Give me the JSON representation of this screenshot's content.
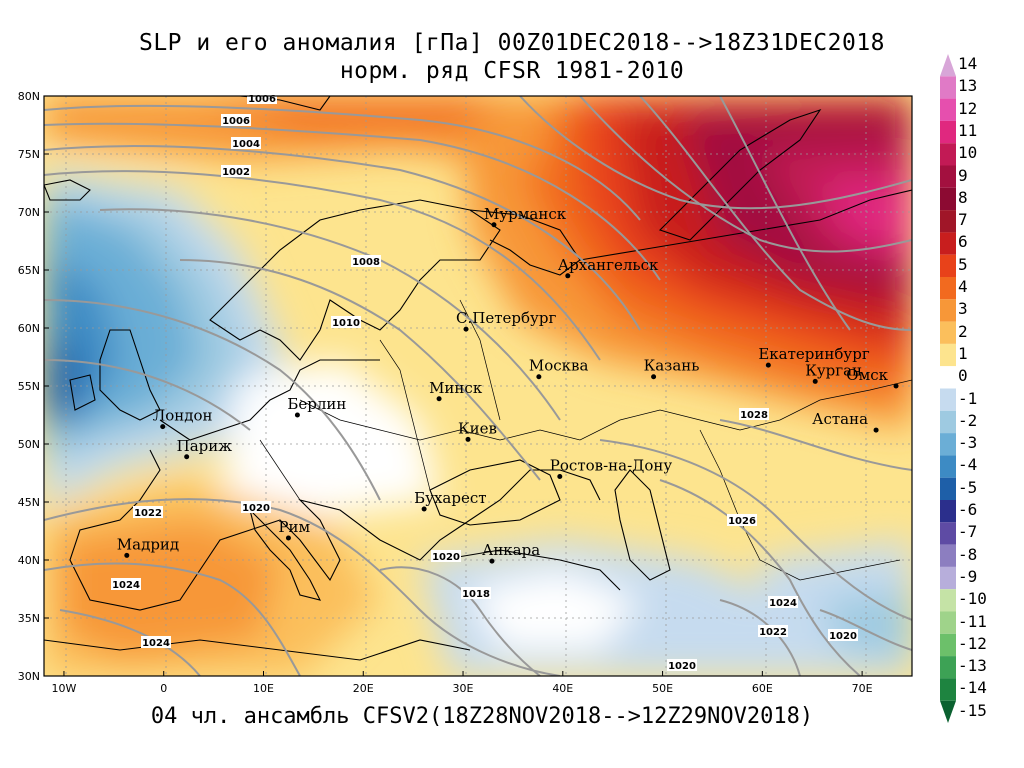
{
  "title": {
    "line1": "SLP и его аномалия [гПа] 00Z01DEC2018-->18Z31DEC2018",
    "line2": "норм. ряд CFSR 1981-2010"
  },
  "footer": "04 чл. ансамбль CFSV2(18Z28NOV2018-->12Z29NOV2018)",
  "axes": {
    "lat_labels": [
      "80N",
      "75N",
      "70N",
      "65N",
      "60N",
      "55N",
      "50N",
      "45N",
      "40N",
      "35N",
      "30N"
    ],
    "lat_values": [
      80,
      75,
      70,
      65,
      60,
      55,
      50,
      45,
      40,
      35,
      30
    ],
    "lon_labels": [
      "10W",
      "0",
      "10E",
      "20E",
      "30E",
      "40E",
      "50E",
      "60E",
      "70E"
    ],
    "lon_values": [
      -10,
      0,
      10,
      20,
      30,
      40,
      50,
      60,
      70
    ],
    "lon_range": [
      -12,
      75
    ],
    "lat_range": [
      30,
      80
    ]
  },
  "colorbar": {
    "labels": [
      "14",
      "13",
      "12",
      "11",
      "10",
      "9",
      "8",
      "7",
      "6",
      "5",
      "4",
      "3",
      "2",
      "1",
      "0",
      "-1",
      "-2",
      "-3",
      "-4",
      "-5",
      "-6",
      "-7",
      "-8",
      "-9",
      "-10",
      "-11",
      "-12",
      "-13",
      "-14",
      "-15"
    ],
    "colors": [
      "#d8a6d8",
      "#e07ac6",
      "#e64fae",
      "#e0287f",
      "#c21a55",
      "#a3103f",
      "#8c0a32",
      "#a01628",
      "#c81e1e",
      "#e8421a",
      "#f26a1f",
      "#f79738",
      "#fbbf5c",
      "#fde48e",
      "#ffffff",
      "#c6dbef",
      "#9ecae1",
      "#6baed6",
      "#3d8bc4",
      "#1e5fa8",
      "#2b2f8c",
      "#5e4ba4",
      "#8c7ec0",
      "#b7aedb",
      "#c5e3a6",
      "#9fd38a",
      "#6cc06a",
      "#3da255",
      "#1e8440",
      "#0b6130"
    ]
  },
  "cities": [
    {
      "name": "Мурманск",
      "lon": 33.1,
      "lat": 68.9
    },
    {
      "name": "Архангельск",
      "lon": 40.5,
      "lat": 64.5
    },
    {
      "name": "С.Петербург",
      "lon": 30.3,
      "lat": 59.9
    },
    {
      "name": "Москва",
      "lon": 37.6,
      "lat": 55.8
    },
    {
      "name": "Казань",
      "lon": 49.1,
      "lat": 55.8
    },
    {
      "name": "Екатеринбург",
      "lon": 60.6,
      "lat": 56.8
    },
    {
      "name": "Курган",
      "lon": 65.3,
      "lat": 55.4
    },
    {
      "name": "Омск",
      "lon": 73.4,
      "lat": 55.0
    },
    {
      "name": "Астана",
      "lon": 71.4,
      "lat": 51.2
    },
    {
      "name": "Минск",
      "lon": 27.6,
      "lat": 53.9
    },
    {
      "name": "Берлин",
      "lon": 13.4,
      "lat": 52.5
    },
    {
      "name": "Лондон",
      "lon": -0.1,
      "lat": 51.5
    },
    {
      "name": "Париж",
      "lon": 2.3,
      "lat": 48.9
    },
    {
      "name": "Киев",
      "lon": 30.5,
      "lat": 50.4
    },
    {
      "name": "Ростов-на-Дону",
      "lon": 39.7,
      "lat": 47.2
    },
    {
      "name": "Бухарест",
      "lon": 26.1,
      "lat": 44.4
    },
    {
      "name": "Мадрид",
      "lon": -3.7,
      "lat": 40.4
    },
    {
      "name": "Рим",
      "lon": 12.5,
      "lat": 41.9
    },
    {
      "name": "Анкара",
      "lon": 32.9,
      "lat": 39.9
    }
  ],
  "isobar_labels": [
    "1006",
    "1006",
    "1004",
    "1002",
    "1008",
    "1010",
    "1028",
    "1026",
    "1022",
    "1020",
    "1020",
    "1024",
    "1024",
    "1018",
    "1024",
    "1022",
    "1020",
    "1020"
  ]
}
